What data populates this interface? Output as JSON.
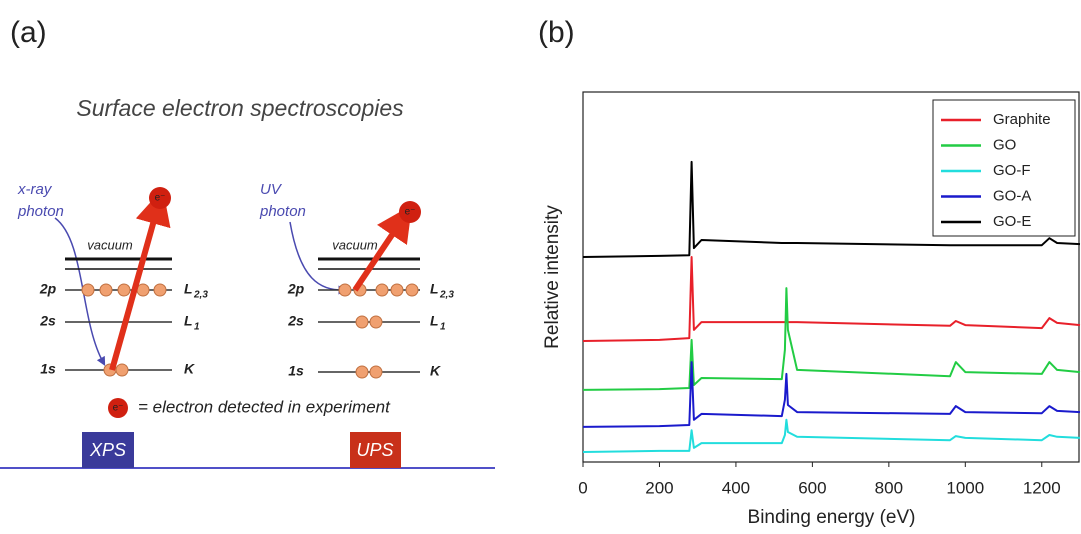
{
  "labels": {
    "a": "(a)",
    "b": "(b)"
  },
  "diagram": {
    "title": "Surface electron spectroscopies",
    "xps": {
      "photon": [
        "x-ray",
        "photon"
      ],
      "vacuum": "vacuum",
      "levels": [
        {
          "name": "2p",
          "shell": {
            "main": "L",
            "sub": "2,3"
          }
        },
        {
          "name": "2s",
          "shell": {
            "main": "L",
            "sub": "1"
          }
        },
        {
          "name": "1s",
          "shell": {
            "main": "K"
          }
        }
      ],
      "electron": "e⁻",
      "tag": "XPS"
    },
    "ups": {
      "photon": [
        "UV",
        "photon"
      ],
      "vacuum": "vacuum",
      "levels": [
        {
          "name": "2p",
          "shell": {
            "main": "L",
            "sub": "2,3"
          }
        },
        {
          "name": "2s",
          "shell": {
            "main": "L",
            "sub": "1"
          }
        },
        {
          "name": "1s",
          "shell": {
            "main": "K"
          }
        }
      ],
      "electron": "e⁻",
      "tag": "UPS"
    },
    "legend": {
      "symbol": "e⁻",
      "text": "= electron detected in experiment"
    }
  },
  "chart_data": {
    "type": "line",
    "xlabel": "Binding energy (eV)",
    "ylabel": "Relative intensity",
    "x": [
      0,
      200,
      278,
      284,
      290,
      310,
      520,
      528,
      532,
      536,
      560,
      960,
      975,
      1000,
      1200,
      1220,
      1240,
      1300
    ],
    "series": [
      {
        "name": "Graphite",
        "color": "#e8202a",
        "values": [
          32.7,
          33,
          33.5,
          55.4,
          35.7,
          37.8,
          37.8,
          37.8,
          37.8,
          37.8,
          37.8,
          36.8,
          38.1,
          37,
          36.2,
          38.9,
          37.6,
          37
        ]
      },
      {
        "name": "GO",
        "color": "#22cc44",
        "values": [
          19.5,
          19.7,
          20,
          33,
          20.8,
          22.7,
          22.4,
          30.3,
          47,
          35.7,
          24.9,
          23.2,
          27,
          24.3,
          23.8,
          27,
          24.9,
          24.3
        ]
      },
      {
        "name": "GO-F",
        "color": "#22dddd",
        "values": [
          2.7,
          3,
          3,
          8.6,
          3.8,
          5.1,
          5.1,
          7.3,
          11.4,
          8.1,
          6.8,
          5.9,
          7,
          6.5,
          5.9,
          7.3,
          6.8,
          6.5
        ]
      },
      {
        "name": "GO-A",
        "color": "#1a1acc",
        "values": [
          9.5,
          9.7,
          10,
          27,
          11.4,
          13,
          12.4,
          16.8,
          23.8,
          15.4,
          13.5,
          13,
          15.1,
          13.5,
          13.2,
          15.1,
          13.8,
          13.5
        ]
      },
      {
        "name": "GO-E",
        "color": "#000000",
        "values": [
          55.4,
          55.7,
          55.9,
          81.1,
          57.8,
          60,
          59.2,
          59.2,
          59.2,
          59.2,
          59.2,
          58.6,
          58.6,
          58.6,
          58.6,
          60.5,
          59.2,
          58.9
        ]
      }
    ],
    "xlim": [
      0,
      1300
    ],
    "xticks": [
      0,
      200,
      400,
      600,
      800,
      1000,
      1200
    ],
    "ylim": [
      0,
      100
    ],
    "legend": "upper right"
  }
}
